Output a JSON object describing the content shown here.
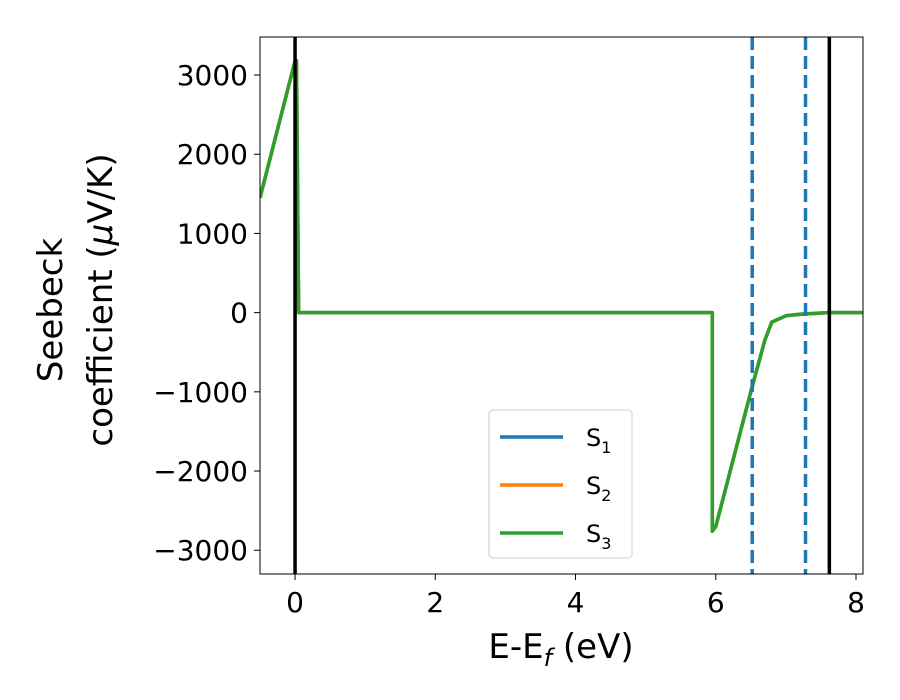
{
  "chart_data": {
    "type": "line",
    "xlabel": "E-E",
    "xlabel_sub": "f",
    "xlabel_unit": " (eV)",
    "ylabel_line1": "Seebeck",
    "ylabel_line2_prefix": "coefficient  (",
    "ylabel_mu": "μ",
    "ylabel_line2_suffix": "V/K)",
    "xlim": [
      -0.5,
      8.1
    ],
    "ylim": [
      -3300,
      3480
    ],
    "x_ticks": [
      0,
      2,
      4,
      6,
      8
    ],
    "x_tick_labels": [
      "0",
      "2",
      "4",
      "6",
      "8"
    ],
    "y_ticks": [
      3000,
      2000,
      1000,
      0,
      -1000,
      -2000,
      -3000
    ],
    "y_tick_labels": [
      "3000",
      "2000",
      "1000",
      "0",
      "−1000",
      "−2000",
      "−3000"
    ],
    "grid": false,
    "legend_position": "lower-center",
    "series": [
      {
        "name": "S",
        "sub": "1",
        "color": "#1f77b4",
        "x": [
          -0.5,
          0.0,
          0.02,
          0.05,
          5.95,
          5.95,
          6.0,
          6.5,
          6.7,
          6.8,
          7.0,
          7.2,
          7.6,
          8.1
        ],
        "y": [
          1450,
          3180,
          3180,
          0,
          0,
          -2760,
          -2700,
          -1000,
          -350,
          -120,
          -40,
          -20,
          0,
          0
        ]
      },
      {
        "name": "S",
        "sub": "2",
        "color": "#ff7f0e",
        "x": [
          -0.5,
          0.0,
          0.02,
          0.05,
          5.95,
          5.95,
          6.0,
          6.5,
          6.7,
          6.8,
          7.0,
          7.2,
          7.6,
          8.1
        ],
        "y": [
          1450,
          3180,
          3180,
          0,
          0,
          -2760,
          -2700,
          -1000,
          -350,
          -120,
          -40,
          -20,
          0,
          0
        ]
      },
      {
        "name": "S",
        "sub": "3",
        "color": "#2ca02c",
        "x": [
          -0.5,
          0.0,
          0.02,
          0.05,
          5.95,
          5.95,
          6.0,
          6.5,
          6.7,
          6.8,
          7.0,
          7.2,
          7.6,
          8.1
        ],
        "y": [
          1450,
          3180,
          3180,
          0,
          0,
          -2760,
          -2700,
          -1000,
          -350,
          -120,
          -40,
          -20,
          0,
          0
        ]
      }
    ],
    "vlines": [
      {
        "x": 0.0,
        "style": "solid",
        "color": "#000000"
      },
      {
        "x": 7.62,
        "style": "solid",
        "color": "#000000"
      },
      {
        "x": 6.52,
        "style": "dashed",
        "color": "#1f77b4"
      },
      {
        "x": 7.28,
        "style": "dashed",
        "color": "#1f77b4"
      }
    ]
  }
}
